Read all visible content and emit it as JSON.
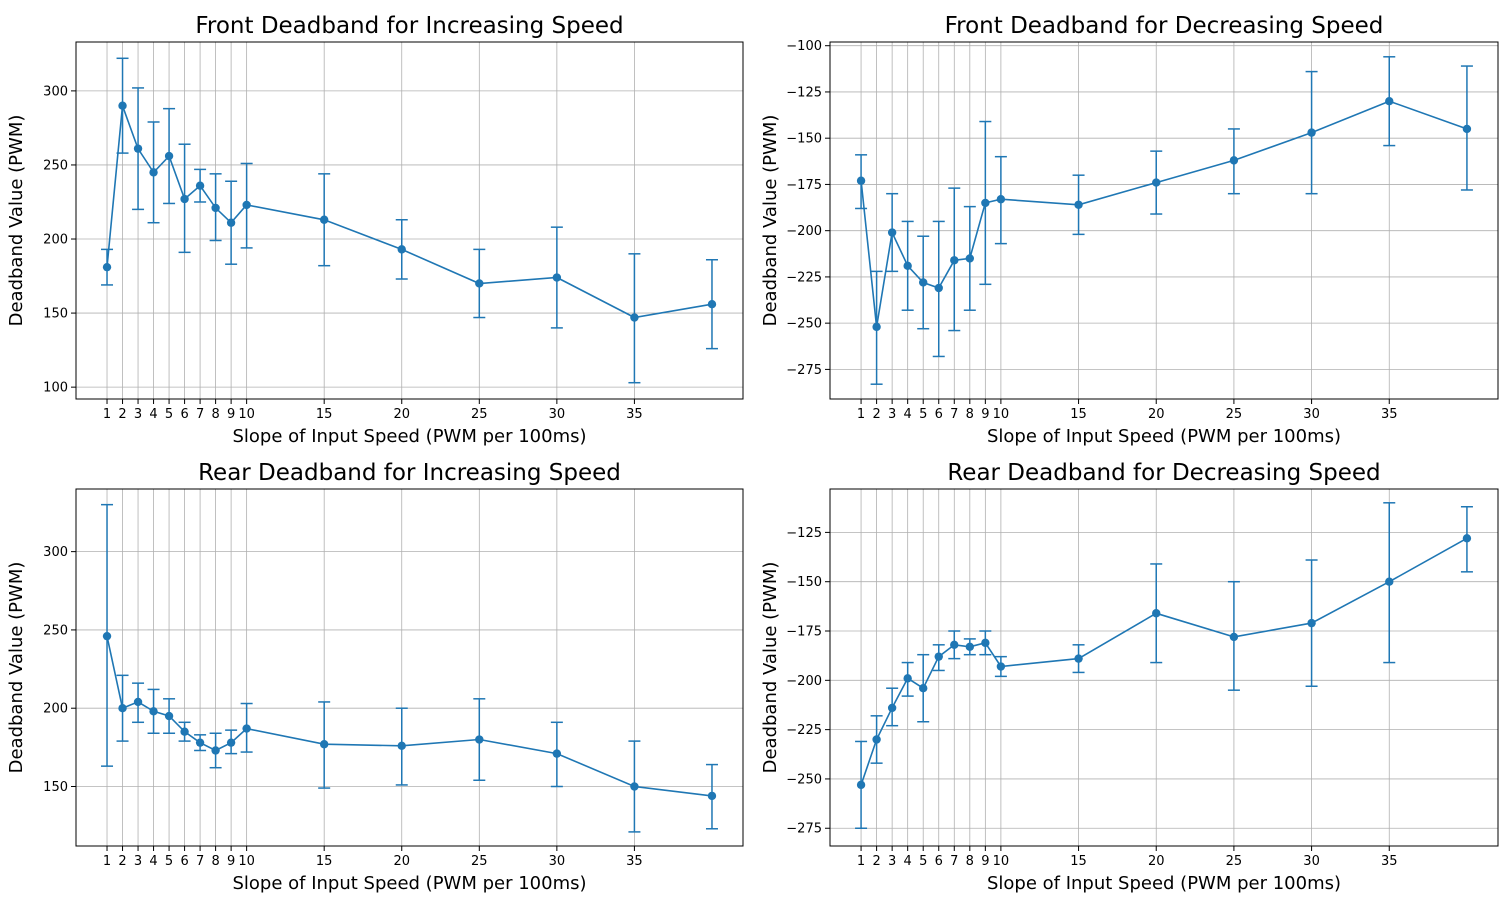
{
  "chart_data": [
    {
      "type": "line",
      "title": "Front Deadband for Increasing Speed",
      "xlabel": "Slope of Input Speed (PWM per 100ms)",
      "ylabel": "Deadband Value (PWM)",
      "xticks": [
        1,
        2,
        3,
        4,
        5,
        6,
        7,
        8,
        9,
        10,
        15,
        20,
        25,
        30,
        35
      ],
      "xlim": [
        -1,
        42
      ],
      "ylim": [
        92,
        333
      ],
      "yticks": [
        100,
        150,
        200,
        250,
        300
      ],
      "grid": true,
      "color": "#1f77b4",
      "series": [
        {
          "x": [
            1,
            2,
            3,
            4,
            5,
            6,
            7,
            8,
            9,
            10,
            15,
            20,
            25,
            30,
            35,
            40
          ],
          "y": [
            181,
            290,
            261,
            245,
            256,
            227,
            236,
            221,
            211,
            223,
            213,
            193,
            170,
            174,
            147,
            156
          ],
          "err_low": [
            169,
            258,
            220,
            211,
            224,
            191,
            225,
            199,
            183,
            194,
            182,
            173,
            147,
            140,
            103,
            126
          ],
          "err_high": [
            193,
            322,
            302,
            279,
            288,
            264,
            247,
            244,
            239,
            251,
            244,
            213,
            193,
            208,
            190,
            186
          ]
        }
      ]
    },
    {
      "type": "line",
      "title": "Front Deadband for Decreasing Speed",
      "xlabel": "Slope of Input Speed (PWM per 100ms)",
      "ylabel": "Deadband Value (PWM)",
      "xticks": [
        1,
        2,
        3,
        4,
        5,
        6,
        7,
        8,
        9,
        10,
        15,
        20,
        25,
        30,
        35
      ],
      "xlim": [
        -1,
        42
      ],
      "ylim": [
        -291,
        -98
      ],
      "yticks": [
        -275,
        -250,
        -225,
        -200,
        -175,
        -150,
        -125,
        -100
      ],
      "grid": true,
      "color": "#1f77b4",
      "series": [
        {
          "x": [
            1,
            2,
            3,
            4,
            5,
            6,
            7,
            8,
            9,
            10,
            15,
            20,
            25,
            30,
            35,
            40
          ],
          "y": [
            -173,
            -252,
            -201,
            -219,
            -228,
            -231,
            -216,
            -215,
            -185,
            -183,
            -186,
            -174,
            -162,
            -147,
            -130,
            -145
          ],
          "err_low": [
            -188,
            -283,
            -222,
            -243,
            -253,
            -268,
            -254,
            -243,
            -229,
            -207,
            -202,
            -191,
            -180,
            -180,
            -154,
            -178
          ],
          "err_high": [
            -159,
            -222,
            -180,
            -195,
            -203,
            -195,
            -177,
            -187,
            -141,
            -160,
            -170,
            -157,
            -145,
            -114,
            -106,
            -111
          ]
        }
      ]
    },
    {
      "type": "line",
      "title": "Rear Deadband for Increasing Speed",
      "xlabel": "Slope of Input Speed (PWM per 100ms)",
      "ylabel": "Deadband Value (PWM)",
      "xticks": [
        1,
        2,
        3,
        4,
        5,
        6,
        7,
        8,
        9,
        10,
        15,
        20,
        25,
        30,
        35
      ],
      "xlim": [
        -1,
        42
      ],
      "ylim": [
        112,
        340
      ],
      "yticks": [
        150,
        200,
        250,
        300
      ],
      "grid": true,
      "color": "#1f77b4",
      "series": [
        {
          "x": [
            1,
            2,
            3,
            4,
            5,
            6,
            7,
            8,
            9,
            10,
            15,
            20,
            25,
            30,
            35,
            40
          ],
          "y": [
            246,
            200,
            204,
            198,
            195,
            185,
            178,
            173,
            178,
            187,
            177,
            176,
            180,
            171,
            150,
            144
          ],
          "err_low": [
            163,
            179,
            191,
            184,
            184,
            179,
            173,
            162,
            171,
            172,
            149,
            151,
            154,
            150,
            121,
            123
          ],
          "err_high": [
            330,
            221,
            216,
            212,
            206,
            191,
            183,
            184,
            186,
            203,
            204,
            200,
            206,
            191,
            179,
            164
          ]
        }
      ]
    },
    {
      "type": "line",
      "title": "Rear Deadband for Decreasing Speed",
      "xlabel": "Slope of Input Speed (PWM per 100ms)",
      "ylabel": "Deadband Value (PWM)",
      "xticks": [
        1,
        2,
        3,
        4,
        5,
        6,
        7,
        8,
        9,
        10,
        15,
        20,
        25,
        30,
        35
      ],
      "xlim": [
        -1,
        42
      ],
      "ylim": [
        -284,
        -103
      ],
      "yticks": [
        -275,
        -250,
        -225,
        -200,
        -175,
        -150,
        -125
      ],
      "grid": true,
      "color": "#1f77b4",
      "series": [
        {
          "x": [
            1,
            2,
            3,
            4,
            5,
            6,
            7,
            8,
            9,
            10,
            15,
            20,
            25,
            30,
            35,
            40
          ],
          "y": [
            -253,
            -230,
            -214,
            -199,
            -204,
            -188,
            -182,
            -183,
            -181,
            -193,
            -189,
            -166,
            -178,
            -171,
            -150,
            -128
          ],
          "err_low": [
            -275,
            -242,
            -223,
            -208,
            -221,
            -195,
            -189,
            -187,
            -187,
            -198,
            -196,
            -191,
            -205,
            -203,
            -191,
            -145
          ],
          "err_high": [
            -231,
            -218,
            -204,
            -191,
            -187,
            -182,
            -175,
            -179,
            -175,
            -188,
            -182,
            -141,
            -150,
            -139,
            -110,
            -112
          ]
        }
      ]
    }
  ]
}
